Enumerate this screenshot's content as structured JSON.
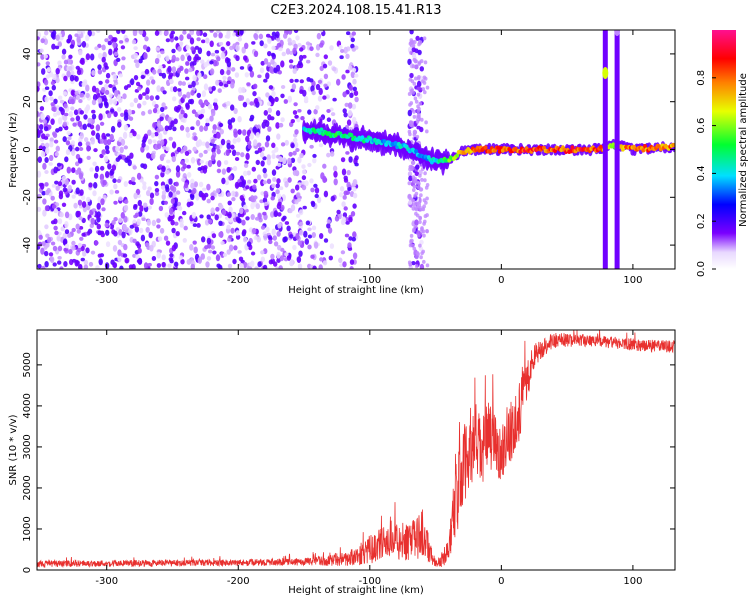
{
  "title": "C2E3.2024.108.15.41.R13",
  "chart_data": [
    {
      "type": "heatmap",
      "xlabel": "Height of straight line (km)",
      "ylabel": "Frequency (Hz)",
      "xlim": [
        -353,
        132
      ],
      "ylim": [
        -50,
        50
      ],
      "xticks": [
        "-300",
        "-200",
        "-100",
        "0",
        "100"
      ],
      "xtick_values": [
        -300,
        -200,
        -100,
        0,
        100
      ],
      "yticks": [
        "-40",
        "-20",
        "0",
        "20",
        "40"
      ],
      "ytick_values": [
        -40,
        -20,
        0,
        20,
        40
      ],
      "colorbar": {
        "label": "Normalized spectral amplitude",
        "ticks": [
          "0.0",
          "0.2",
          "0.4",
          "0.6",
          "0.8"
        ],
        "tick_values": [
          0.0,
          0.2,
          0.4,
          0.6,
          0.8
        ],
        "range": [
          0,
          1
        ]
      },
      "noise_region_x": [
        -353,
        -120
      ],
      "signal_trace": {
        "x": [
          -150,
          -140,
          -130,
          -120,
          -110,
          -100,
          -90,
          -80,
          -70,
          -60,
          -50,
          -45,
          -40,
          -30,
          -20,
          -10,
          0,
          20,
          40,
          60,
          75,
          85,
          100,
          120,
          132
        ],
        "freq": [
          8,
          8,
          6,
          6,
          5,
          4,
          3,
          2,
          0,
          -3,
          -5,
          -5,
          -4,
          -1,
          0,
          0,
          0,
          0,
          0,
          0,
          0,
          2,
          0,
          1,
          1
        ],
        "amp": [
          0.45,
          0.5,
          0.55,
          0.5,
          0.5,
          0.45,
          0.4,
          0.42,
          0.45,
          0.35,
          0.45,
          0.5,
          0.6,
          0.75,
          0.85,
          0.9,
          0.9,
          0.9,
          0.9,
          0.9,
          0.85,
          0.7,
          0.85,
          0.85,
          0.85
        ]
      },
      "spikes": [
        {
          "x": 79,
          "freq_peak": 32,
          "amp": 0.65
        },
        {
          "x": 88,
          "freq_peak": 50,
          "amp": 0.1
        }
      ]
    },
    {
      "type": "line",
      "xlabel": "Height of straight line (km)",
      "ylabel": "SNR (10 * v/v)",
      "xlim": [
        -353,
        132
      ],
      "ylim": [
        0,
        5850
      ],
      "xticks": [
        "-300",
        "-200",
        "-100",
        "0",
        "100"
      ],
      "xtick_values": [
        -300,
        -200,
        -100,
        0,
        100
      ],
      "yticks": [
        "0",
        "1000",
        "2000",
        "3000",
        "4000",
        "5000"
      ],
      "ytick_values": [
        0,
        1000,
        2000,
        3000,
        4000,
        5000
      ],
      "series": [
        {
          "color": "#e8302e",
          "x": [
            -353,
            -300,
            -250,
            -200,
            -150,
            -120,
            -110,
            -100,
            -90,
            -80,
            -70,
            -60,
            -55,
            -50,
            -45,
            -40,
            -35,
            -30,
            -25,
            -20,
            -15,
            -10,
            -5,
            0,
            5,
            10,
            15,
            20,
            25,
            30,
            40,
            60,
            80,
            100,
            120,
            132
          ],
          "y": [
            150,
            160,
            170,
            180,
            200,
            250,
            350,
            500,
            650,
            700,
            650,
            900,
            500,
            150,
            250,
            500,
            1700,
            2300,
            2900,
            3200,
            2800,
            3300,
            3100,
            2900,
            3200,
            3500,
            4000,
            4700,
            5200,
            5400,
            5600,
            5600,
            5550,
            5500,
            5450,
            5450
          ],
          "noise": [
            80,
            80,
            80,
            80,
            90,
            150,
            250,
            350,
            400,
            450,
            450,
            600,
            300,
            100,
            200,
            300,
            900,
            1000,
            1000,
            900,
            900,
            800,
            800,
            700,
            700,
            700,
            700,
            500,
            300,
            250,
            200,
            150,
            150,
            150,
            150,
            150
          ]
        }
      ]
    }
  ]
}
